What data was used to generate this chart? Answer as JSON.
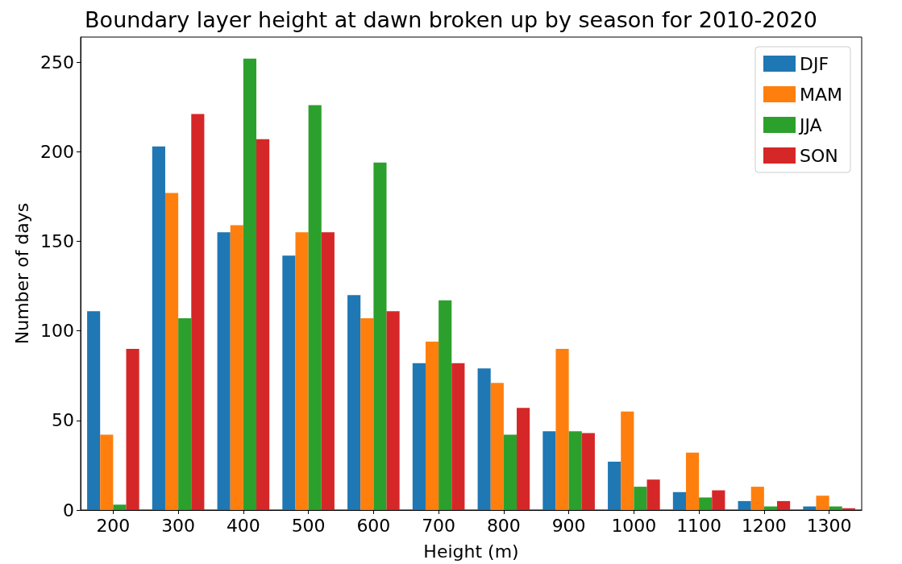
{
  "chart_data": {
    "type": "bar",
    "title": "Boundary layer height at dawn broken up by season for 2010-2020",
    "xlabel": "Height (m)",
    "ylabel": "Number of days",
    "categories": [
      "200",
      "300",
      "400",
      "500",
      "600",
      "700",
      "800",
      "900",
      "1000",
      "1100",
      "1200",
      "1300"
    ],
    "series": [
      {
        "name": "DJF",
        "color": "#1f77b4",
        "values": [
          111,
          203,
          155,
          142,
          120,
          82,
          79,
          44,
          27,
          10,
          5,
          2
        ]
      },
      {
        "name": "MAM",
        "color": "#ff7f0e",
        "values": [
          42,
          177,
          159,
          155,
          107,
          94,
          71,
          90,
          55,
          32,
          13,
          8
        ]
      },
      {
        "name": "JJA",
        "color": "#2ca02c",
        "values": [
          3,
          107,
          252,
          226,
          194,
          117,
          42,
          44,
          13,
          7,
          2,
          2
        ]
      },
      {
        "name": "SON",
        "color": "#d62728",
        "values": [
          90,
          221,
          207,
          155,
          111,
          82,
          57,
          43,
          17,
          11,
          5,
          1
        ]
      }
    ],
    "ylim": [
      0,
      264
    ],
    "yticks": [
      0,
      50,
      100,
      150,
      200,
      250
    ],
    "grid": false,
    "legend": "top right"
  }
}
